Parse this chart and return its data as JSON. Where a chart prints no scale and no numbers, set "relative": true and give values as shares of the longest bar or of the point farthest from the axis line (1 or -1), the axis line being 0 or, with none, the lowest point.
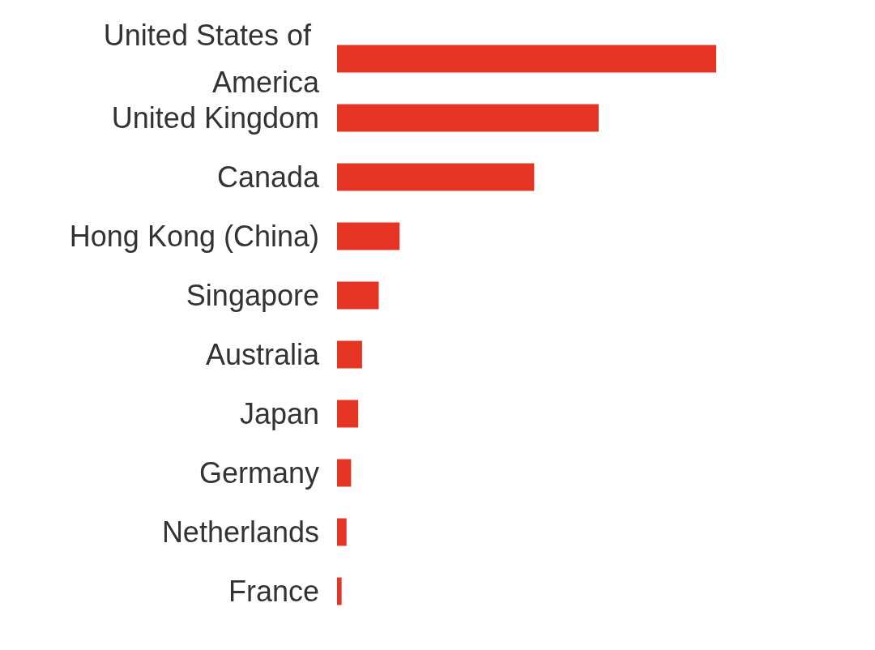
{
  "chart_data": {
    "type": "bar",
    "orientation": "horizontal",
    "relative": true,
    "categories": [
      "United States of America",
      "United Kingdom",
      "Canada",
      "Hong Kong (China)",
      "Singapore",
      "Australia",
      "Japan",
      "Germany",
      "Netherlands",
      "France"
    ],
    "values": [
      1,
      0.69,
      0.52,
      0.165,
      0.11,
      0.066,
      0.056,
      0.037,
      0.025,
      0.012
    ],
    "color": "#e53424"
  }
}
